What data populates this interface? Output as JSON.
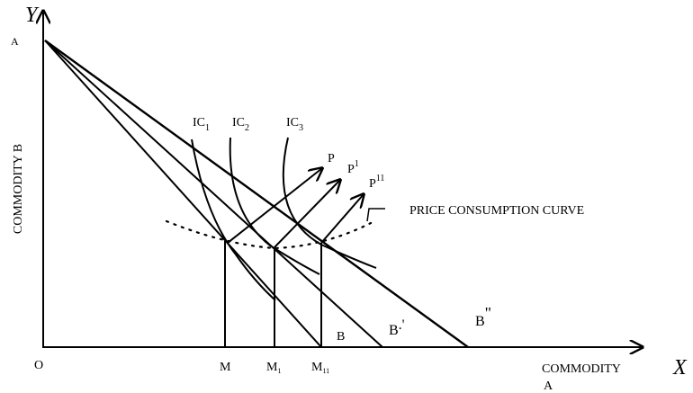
{
  "axes": {
    "y": "Y",
    "x": "X",
    "y_title": "COMMODITY B",
    "x_title": [
      "COMMODITY",
      "A"
    ],
    "origin": "O"
  },
  "point_a": "A",
  "budget_lines": [
    {
      "label": "B"
    },
    {
      "label": "B",
      "sup": ".'"
    },
    {
      "label": "B",
      "sup": "\""
    }
  ],
  "indifference_curves": [
    {
      "label": "IC",
      "sub": "1"
    },
    {
      "label": "IC",
      "sub": "2"
    },
    {
      "label": "IC",
      "sub": "3"
    }
  ],
  "quantities": [
    {
      "label": "M"
    },
    {
      "label": "M",
      "sub": "1"
    },
    {
      "label": "M",
      "sub": "11"
    }
  ],
  "equilibria": [
    {
      "label": "P"
    },
    {
      "label": "P",
      "sup": "1"
    },
    {
      "label": "P",
      "sup": "11"
    }
  ],
  "curve_label": "PRICE CONSUMPTION CURVE"
}
